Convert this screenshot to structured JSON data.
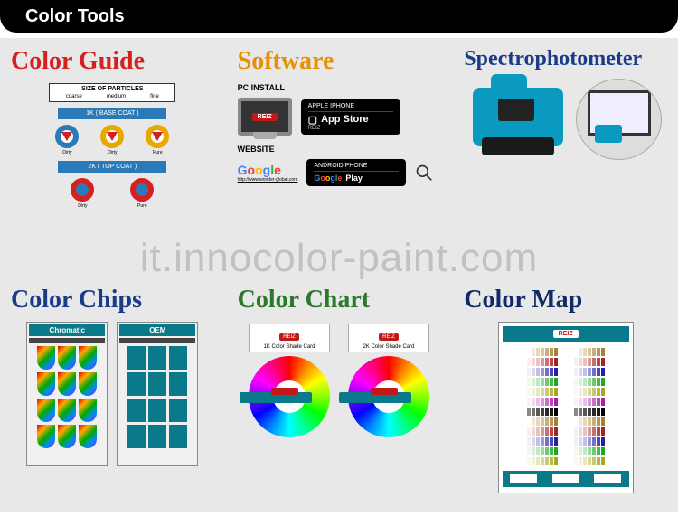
{
  "header": {
    "title": "Color Tools"
  },
  "watermark": "it.innocolor-paint.com",
  "brand": "REIZ",
  "sections": {
    "guide": {
      "title": "Color Guide",
      "title_color": "#d62020",
      "particles_label": "SIZE OF PARTICLES",
      "p_coarse": "coarse",
      "p_medium": "medium",
      "p_fine": "fine",
      "bar1": "1K ( BASE COAT )",
      "bar2": "2K ( TOP COAT )",
      "row1_labels": [
        "Dirty",
        "Dirty",
        "Pure"
      ],
      "row2_labels": [
        "Dirty",
        "Pure"
      ],
      "circle_colors": [
        "#e8a800",
        "#e8a800",
        "#e8a800"
      ],
      "ring_color": "#2a7ab8",
      "tri_color": "#d62020"
    },
    "software": {
      "title": "Software",
      "title_color": "#e89000",
      "pc_label": "PC  INSTALL",
      "apple_label": "APPLE IPHONE",
      "appstore": "App Store",
      "website_label": "WEBSITE",
      "google": "Google",
      "url": "http://www.wonder-global.com",
      "android_label": "ANDROID PHONE",
      "play": "Play"
    },
    "spectro": {
      "title": "Spectrophotometer",
      "title_color": "#1a3a8a",
      "device_color": "#0a9abf"
    },
    "chips": {
      "title": "Color  Chips",
      "title_color": "#1a3a8a",
      "cab1": "Chromatic",
      "cab2": "OEM"
    },
    "chart": {
      "title": "Color  Chart",
      "title_color": "#2a7a2a",
      "card1": "1K Color Shade Card",
      "card2": "2K Color Shade Card"
    },
    "map": {
      "title": "Color Map",
      "title_color": "#102a6a",
      "swatch_colors": [
        [
          "#ffffff",
          "#f0e8d8",
          "#e8d8b8",
          "#d8c898",
          "#c8b078",
          "#b89858",
          "#a88038"
        ],
        [
          "#f8f0f0",
          "#f0d8d8",
          "#e8c0c0",
          "#d89898",
          "#c87070",
          "#b84848",
          "#a82020"
        ],
        [
          "#f0f0f8",
          "#d8d8f0",
          "#c0c0e8",
          "#9898d8",
          "#7070c8",
          "#4848b8",
          "#2020a8"
        ],
        [
          "#f0f8f0",
          "#d8f0d8",
          "#c0e8c0",
          "#98d898",
          "#70c870",
          "#48b848",
          "#20a820"
        ],
        [
          "#f8f8f0",
          "#f0f0d8",
          "#e8e8c0",
          "#d8d898",
          "#c8c870",
          "#b8b848",
          "#a8a820"
        ],
        [
          "#f8f0f8",
          "#f0d8f0",
          "#e8c0e8",
          "#d898d8",
          "#c870c8",
          "#b848b8",
          "#a820a8"
        ],
        [
          "#888888",
          "#707070",
          "#585858",
          "#404040",
          "#282828",
          "#181818",
          "#000000"
        ]
      ]
    }
  }
}
